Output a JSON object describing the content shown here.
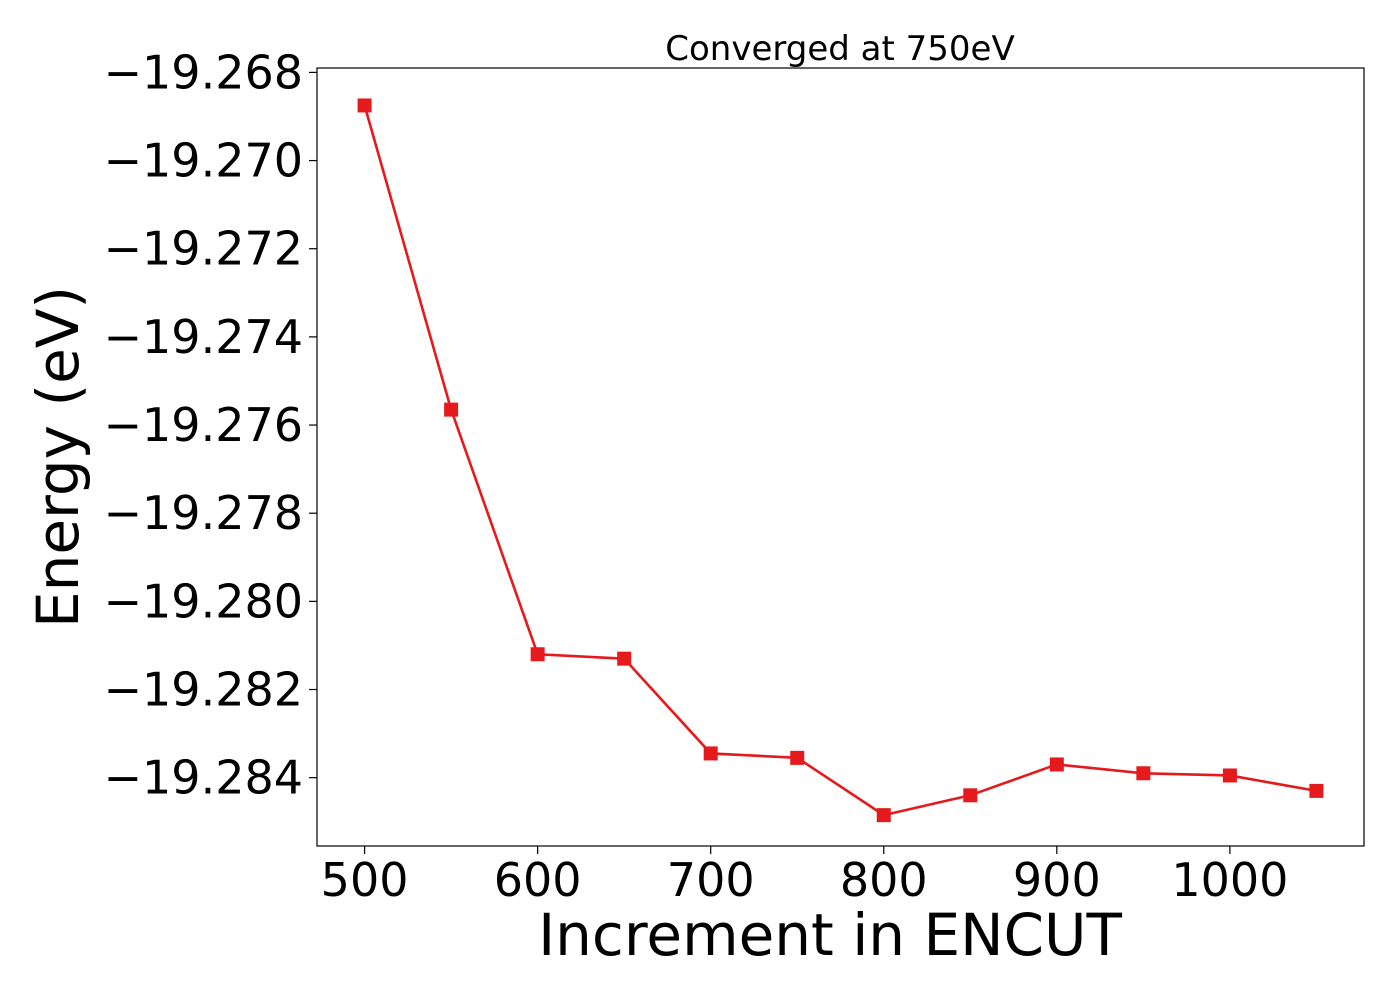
{
  "chart_data": {
    "type": "line",
    "title": "Converged at 750eV",
    "xlabel": "Increment in ENCUT",
    "ylabel": "Energy (eV)",
    "x": [
      500,
      550,
      600,
      650,
      700,
      750,
      800,
      850,
      900,
      950,
      1000,
      1050
    ],
    "series": [
      {
        "values": [
          -19.26875,
          -19.27565,
          -19.2812,
          -19.2813,
          -19.28345,
          -19.28355,
          -19.28485,
          -19.2844,
          -19.2837,
          -19.2839,
          -19.28395,
          -19.2843
        ],
        "color": "#e41a1c",
        "marker": "square"
      }
    ],
    "xlim": [
      472.5,
      1077.5
    ],
    "ylim": [
      -19.28555,
      -19.2679
    ],
    "xticks": [
      500,
      600,
      700,
      800,
      900,
      1000
    ],
    "xtick_labels": [
      "500",
      "600",
      "700",
      "800",
      "900",
      "1000"
    ],
    "yticks": [
      -19.268,
      -19.27,
      -19.272,
      -19.274,
      -19.276,
      -19.278,
      -19.28,
      -19.282,
      -19.284
    ],
    "ytick_labels": [
      "−19.268",
      "−19.270",
      "−19.272",
      "−19.274",
      "−19.276",
      "−19.278",
      "−19.280",
      "−19.282",
      "−19.284"
    ],
    "grid": false,
    "legend": "none"
  }
}
